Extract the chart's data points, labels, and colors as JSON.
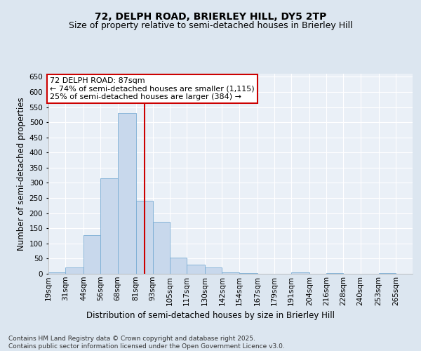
{
  "title": "72, DELPH ROAD, BRIERLEY HILL, DY5 2TP",
  "subtitle": "Size of property relative to semi-detached houses in Brierley Hill",
  "xlabel": "Distribution of semi-detached houses by size in Brierley Hill",
  "ylabel": "Number of semi-detached properties",
  "bin_labels": [
    "19sqm",
    "31sqm",
    "44sqm",
    "56sqm",
    "68sqm",
    "81sqm",
    "93sqm",
    "105sqm",
    "117sqm",
    "130sqm",
    "142sqm",
    "154sqm",
    "167sqm",
    "179sqm",
    "191sqm",
    "204sqm",
    "216sqm",
    "228sqm",
    "240sqm",
    "253sqm",
    "265sqm"
  ],
  "bin_edges": [
    19,
    31,
    44,
    56,
    68,
    81,
    93,
    105,
    117,
    130,
    142,
    154,
    167,
    179,
    191,
    204,
    216,
    228,
    240,
    253,
    265,
    277
  ],
  "bar_heights": [
    5,
    20,
    128,
    315,
    530,
    240,
    172,
    53,
    30,
    20,
    5,
    3,
    0,
    0,
    5,
    0,
    3,
    0,
    0,
    2,
    0
  ],
  "bar_color": "#c8d8ec",
  "bar_edge_color": "#7aadd4",
  "property_size": 87,
  "red_line_color": "#cc0000",
  "annotation_text": "72 DELPH ROAD: 87sqm\n← 74% of semi-detached houses are smaller (1,115)\n25% of semi-detached houses are larger (384) →",
  "annotation_box_color": "#ffffff",
  "annotation_box_edge_color": "#cc0000",
  "ylim": [
    0,
    660
  ],
  "yticks": [
    0,
    50,
    100,
    150,
    200,
    250,
    300,
    350,
    400,
    450,
    500,
    550,
    600,
    650
  ],
  "footnote": "Contains HM Land Registry data © Crown copyright and database right 2025.\nContains public sector information licensed under the Open Government Licence v3.0.",
  "background_color": "#dce6f0",
  "plot_background_color": "#eaf0f7",
  "grid_color": "#ffffff",
  "title_fontsize": 10,
  "subtitle_fontsize": 9,
  "axis_label_fontsize": 8.5,
  "tick_fontsize": 7.5,
  "annotation_fontsize": 8,
  "footnote_fontsize": 6.5
}
